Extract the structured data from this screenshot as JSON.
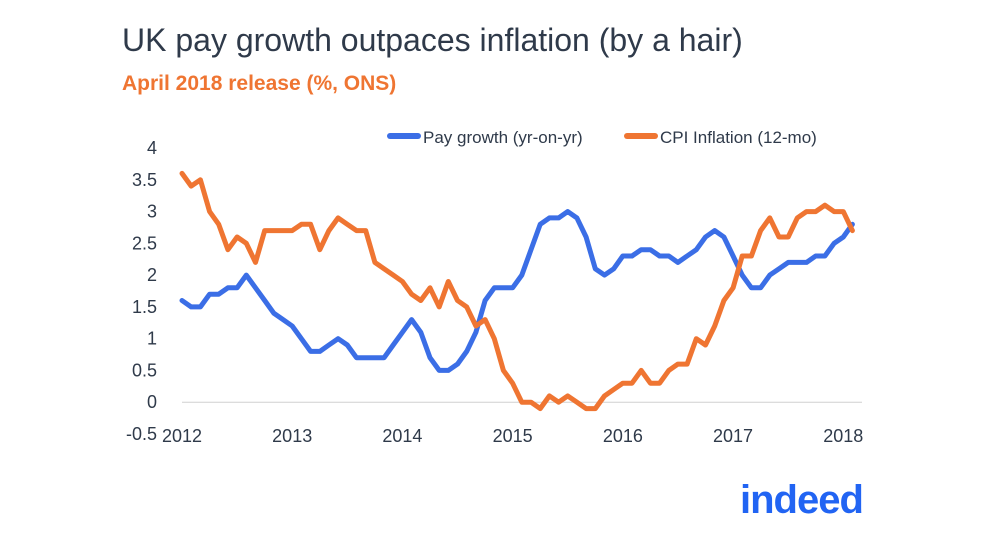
{
  "header": {
    "title": "UK pay growth outpaces inflation (by a hair)",
    "subtitle": "April 2018 release (%, ONS)"
  },
  "brand": {
    "logo_text": "indeed"
  },
  "colors": {
    "pay": "#3b6ee6",
    "cpi": "#ef7532",
    "text": "#2f3a4a",
    "brand": "#2164f3"
  },
  "chart_data": {
    "type": "line",
    "title": "UK pay growth outpaces inflation (by a hair)",
    "subtitle": "April 2018 release (%, ONS)",
    "xlabel": "",
    "ylabel": "",
    "ylim": [
      -0.5,
      4
    ],
    "xlim": [
      2012.0,
      2018.17
    ],
    "legend": "top-right",
    "yticks": [
      -0.5,
      0,
      0.5,
      1,
      1.5,
      2,
      2.5,
      3,
      3.5,
      4
    ],
    "ytick_labels": [
      "-0.5",
      "0",
      "0.5",
      "1",
      "1.5",
      "2",
      "2.5",
      "3",
      "3.5",
      "4"
    ],
    "xticks": [
      2012,
      2013,
      2014,
      2015,
      2016,
      2017,
      2018
    ],
    "xtick_labels": [
      "2012",
      "2013",
      "2014",
      "2015",
      "2016",
      "2017",
      "2018"
    ],
    "x_start": 2012.0,
    "x_step_months": 1,
    "series": [
      {
        "name": "Pay growth (yr-on-yr)",
        "values": [
          1.6,
          1.5,
          1.5,
          1.7,
          1.7,
          1.8,
          1.8,
          2.0,
          1.8,
          1.6,
          1.4,
          1.3,
          1.2,
          1.0,
          0.8,
          0.8,
          0.9,
          1.0,
          0.9,
          0.7,
          0.7,
          0.7,
          0.7,
          0.9,
          1.1,
          1.3,
          1.1,
          0.7,
          0.5,
          0.5,
          0.6,
          0.8,
          1.1,
          1.6,
          1.8,
          1.8,
          1.8,
          2.0,
          2.4,
          2.8,
          2.9,
          2.9,
          3.0,
          2.9,
          2.6,
          2.1,
          2.0,
          2.1,
          2.3,
          2.3,
          2.4,
          2.4,
          2.3,
          2.3,
          2.2,
          2.3,
          2.4,
          2.6,
          2.7,
          2.6,
          2.3,
          2.0,
          1.8,
          1.8,
          2.0,
          2.1,
          2.2,
          2.2,
          2.2,
          2.3,
          2.3,
          2.5,
          2.6,
          2.8
        ]
      },
      {
        "name": "CPI Inflation (12-mo)",
        "values": [
          3.6,
          3.4,
          3.5,
          3.0,
          2.8,
          2.4,
          2.6,
          2.5,
          2.2,
          2.7,
          2.7,
          2.7,
          2.7,
          2.8,
          2.8,
          2.4,
          2.7,
          2.9,
          2.8,
          2.7,
          2.7,
          2.2,
          2.1,
          2.0,
          1.9,
          1.7,
          1.6,
          1.8,
          1.5,
          1.9,
          1.6,
          1.5,
          1.2,
          1.3,
          1.0,
          0.5,
          0.3,
          0.0,
          0.0,
          -0.1,
          0.1,
          0.0,
          0.1,
          0.0,
          -0.1,
          -0.1,
          0.1,
          0.2,
          0.3,
          0.3,
          0.5,
          0.3,
          0.3,
          0.5,
          0.6,
          0.6,
          1.0,
          0.9,
          1.2,
          1.6,
          1.8,
          2.3,
          2.3,
          2.7,
          2.9,
          2.6,
          2.6,
          2.9,
          3.0,
          3.0,
          3.1,
          3.0,
          3.0,
          2.7
        ]
      }
    ]
  }
}
